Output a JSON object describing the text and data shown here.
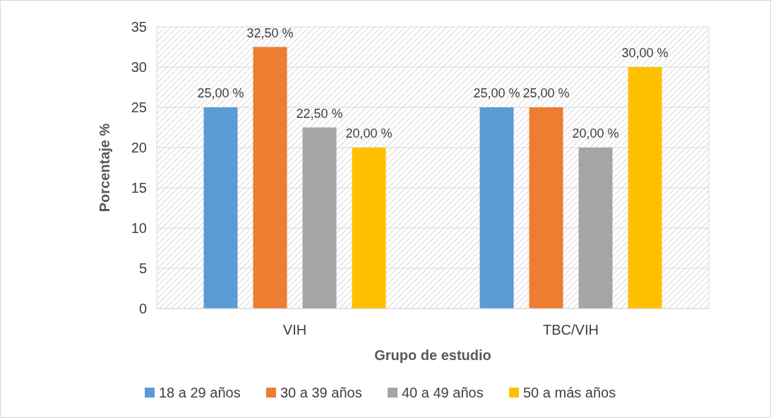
{
  "chart_data": {
    "type": "bar",
    "xlabel": "Grupo de estudio",
    "ylabel": "Porcentaje %",
    "categories": [
      "VIH",
      "TBC/VIH"
    ],
    "series": [
      {
        "name": "18 a 29 años",
        "color": "#5b9bd5",
        "values": [
          25,
          25
        ],
        "value_labels": [
          "25,00 %",
          "25,00 %"
        ]
      },
      {
        "name": "30 a 39 años",
        "color": "#ed7d31",
        "values": [
          32.5,
          25
        ],
        "value_labels": [
          "32,50 %",
          "25,00 %"
        ]
      },
      {
        "name": "40 a 49 años",
        "color": "#a5a5a5",
        "values": [
          22.5,
          20
        ],
        "value_labels": [
          "22,50 %",
          "20,00 %"
        ]
      },
      {
        "name": "50 a más años",
        "color": "#ffc000",
        "values": [
          20,
          30
        ],
        "value_labels": [
          "20,00 %",
          "30,00 %"
        ]
      }
    ],
    "ylim": [
      0,
      35
    ],
    "yticks": [
      0,
      5,
      10,
      15,
      20,
      25,
      30,
      35
    ],
    "grid": "y",
    "legend": "bottom"
  }
}
